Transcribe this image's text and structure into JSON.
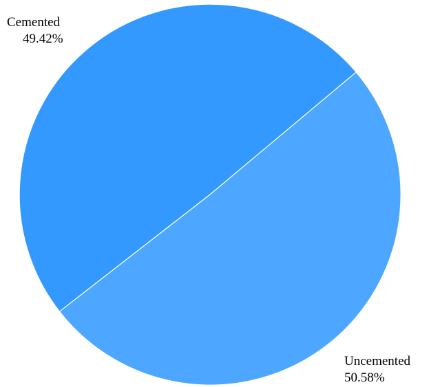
{
  "chart_data": {
    "type": "pie",
    "slices": [
      {
        "name": "Cemented",
        "value": 49.42,
        "percent_label": "49.42%",
        "color": "#3399ff",
        "label_position": "top-left"
      },
      {
        "name": "Uncemented",
        "value": 50.58,
        "percent_label": "50.58%",
        "color": "#4da6ff",
        "label_position": "bottom-right"
      }
    ],
    "title": "",
    "legend": "none"
  }
}
